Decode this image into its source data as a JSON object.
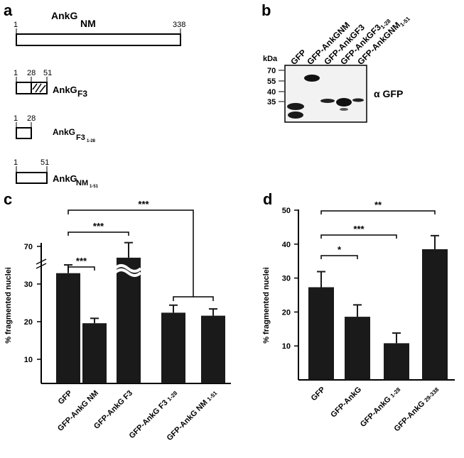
{
  "panels": {
    "a": "a",
    "b": "b",
    "c": "c",
    "d": "d"
  },
  "panel_a": {
    "constructs": [
      {
        "name": "AnkG",
        "sub": "NM",
        "start": "1",
        "end": "338"
      },
      {
        "name": "AnkG",
        "sub": "F3",
        "start": "1",
        "mid": "28",
        "end": "51"
      },
      {
        "name": "AnkG",
        "sub": "F3",
        "subsub": "1-28",
        "start": "1",
        "end": "28"
      },
      {
        "name": "AnkG",
        "sub": "NM",
        "subsub": "1-51",
        "start": "1",
        "end": "51"
      }
    ]
  },
  "panel_b": {
    "kda_label": "kDa",
    "markers": [
      "70",
      "55",
      "40",
      "35"
    ],
    "lanes": [
      {
        "text": "GFP",
        "sub": ""
      },
      {
        "text": "GFP-AnkGNM",
        "sub": ""
      },
      {
        "text": "GFP-AnkGF3",
        "sub": ""
      },
      {
        "text": "GFP-AnkGF3",
        "sub": "1-28"
      },
      {
        "text": "GFP-AnkGNM",
        "sub": "1-51"
      }
    ],
    "antibody": "α GFP"
  },
  "chart_data": [
    {
      "type": "bar",
      "panel": "c",
      "ylabel": "% fragmented nuclei",
      "yticks": [
        "10",
        "20",
        "30",
        "70"
      ],
      "axis_break": true,
      "categories": [
        {
          "text": "GFP",
          "sub": ""
        },
        {
          "text": "GFP-AnkG NM",
          "sub": ""
        },
        {
          "text": "GFP-AnkG F3",
          "sub": ""
        },
        {
          "text": "GFP-AnkG F3",
          "sub": "1-28"
        },
        {
          "text": "GFP-AnkG NM",
          "sub": "1-51"
        }
      ],
      "values": [
        29.3,
        16.0,
        67,
        18.8,
        18.0
      ],
      "errors": [
        2.2,
        1.3,
        4,
        2.0,
        1.8
      ],
      "significance": [
        {
          "label": "***",
          "from": 0,
          "to": 1
        },
        {
          "label": "***",
          "from": 0,
          "to": 2
        },
        {
          "label": "***",
          "from": 0,
          "to": "3-4"
        }
      ],
      "color": "#1a1a1a"
    },
    {
      "type": "bar",
      "panel": "d",
      "ylabel": "% fragmented nuclei",
      "ylim": [
        0,
        50
      ],
      "yticks": [
        "10",
        "20",
        "30",
        "40",
        "50"
      ],
      "categories": [
        {
          "text": "GFP",
          "sub": ""
        },
        {
          "text": "GFP-AnkG",
          "sub": ""
        },
        {
          "text": "GFP-AnkG",
          "sub": "1-28"
        },
        {
          "text": "GFP-AnkG",
          "sub": "29-338"
        }
      ],
      "values": [
        27.3,
        18.6,
        10.8,
        38.5
      ],
      "errors": [
        4.6,
        3.5,
        3.0,
        4.0
      ],
      "significance": [
        {
          "label": "*",
          "from": 0,
          "to": 1
        },
        {
          "label": "***",
          "from": 0,
          "to": 2
        },
        {
          "label": "**",
          "from": 0,
          "to": 3
        }
      ],
      "color": "#1a1a1a"
    }
  ]
}
